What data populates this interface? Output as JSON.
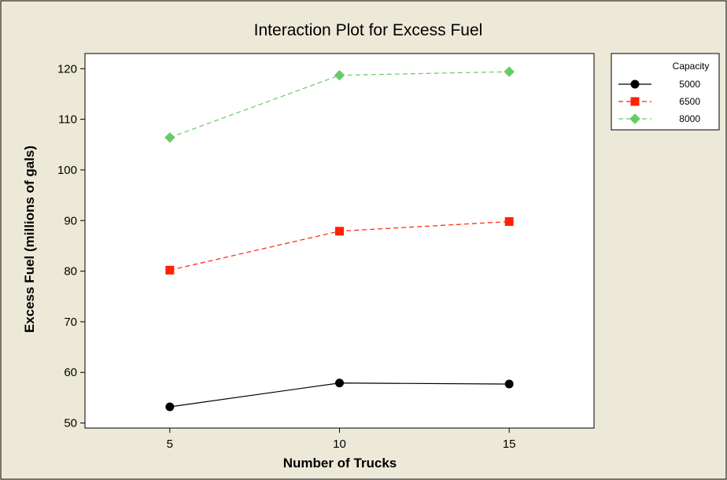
{
  "chart_data": {
    "type": "line",
    "title": "Interaction Plot for Excess Fuel",
    "xlabel": "Number of Trucks",
    "ylabel": "Excess Fuel (millions of gals)",
    "x": [
      5,
      10,
      15
    ],
    "xlim": [
      2.5,
      17.5
    ],
    "ylim": [
      49,
      123
    ],
    "xticks": [
      5,
      10,
      15
    ],
    "yticks": [
      50,
      60,
      70,
      80,
      90,
      100,
      110,
      120
    ],
    "grid": false,
    "legend_position": "right",
    "legend_title": "Capacity",
    "series": [
      {
        "name": "5000",
        "values": [
          53.2,
          57.9,
          57.7
        ],
        "color": "#000000",
        "marker": "circle",
        "line_style": "solid"
      },
      {
        "name": "6500",
        "values": [
          80.2,
          87.9,
          89.8
        ],
        "color": "#ff2200",
        "marker": "square",
        "line_style": "dashed"
      },
      {
        "name": "8000",
        "values": [
          106.4,
          118.7,
          119.4
        ],
        "color": "#66cc66",
        "marker": "diamond",
        "line_style": "dashed"
      }
    ]
  },
  "colors": {
    "page_background": "#ece9d8",
    "plot_background": "#ffffff"
  }
}
